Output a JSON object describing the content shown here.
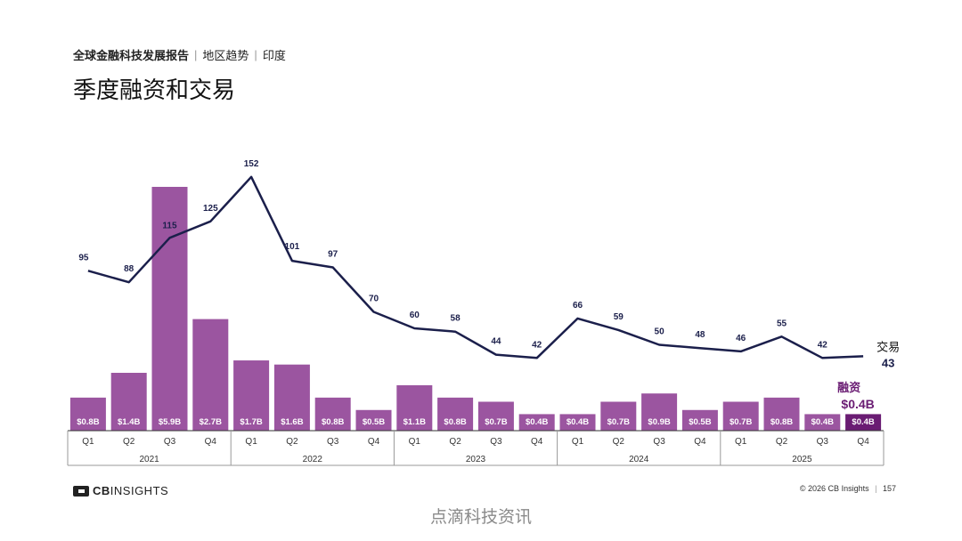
{
  "header": {
    "report": "全球金融科技发展报告",
    "section": "地区趋势",
    "region": "印度",
    "title": "季度融资和交易"
  },
  "chart_data": {
    "type": "bar",
    "quarters": [
      "Q1",
      "Q2",
      "Q3",
      "Q4",
      "Q1",
      "Q2",
      "Q3",
      "Q4",
      "Q1",
      "Q2",
      "Q3",
      "Q4",
      "Q1",
      "Q2",
      "Q3",
      "Q4",
      "Q1",
      "Q2",
      "Q3",
      "Q4"
    ],
    "years": [
      "2021",
      "2022",
      "2023",
      "2024",
      "2025"
    ],
    "series": [
      {
        "name": "融资",
        "type": "bar",
        "values": [
          0.8,
          1.4,
          5.9,
          2.7,
          1.7,
          1.6,
          0.8,
          0.5,
          1.1,
          0.8,
          0.7,
          0.4,
          0.4,
          0.7,
          0.9,
          0.5,
          0.7,
          0.8,
          0.4,
          0.4
        ],
        "labels": [
          "$0.8B",
          "$1.4B",
          "$5.9B",
          "$2.7B",
          "$1.7B",
          "$1.6B",
          "$0.8B",
          "$0.5B",
          "$1.1B",
          "$0.8B",
          "$0.7B",
          "$0.4B",
          "$0.4B",
          "$0.7B",
          "$0.9B",
          "$0.5B",
          "$0.7B",
          "$0.8B",
          "$0.4B",
          "$0.4B"
        ],
        "color": "#9b55a0",
        "highlight_color": "#6a1c73",
        "last_label": "$0.4B"
      },
      {
        "name": "交易",
        "type": "line",
        "values": [
          95,
          88,
          115,
          125,
          152,
          101,
          97,
          70,
          60,
          58,
          44,
          42,
          66,
          59,
          50,
          48,
          46,
          55,
          42,
          43
        ],
        "color": "#1b1f4b",
        "last_label": "43"
      }
    ],
    "bar_ylim": [
      0,
      6.5
    ],
    "line_ylim": [
      0,
      160
    ],
    "grid": false
  },
  "footer": {
    "brand_prefix": "CB",
    "brand_suffix": "INSIGHTS",
    "copyright": "© 2026 CB Insights",
    "page": "157"
  },
  "watermark": "点滴科技资讯"
}
